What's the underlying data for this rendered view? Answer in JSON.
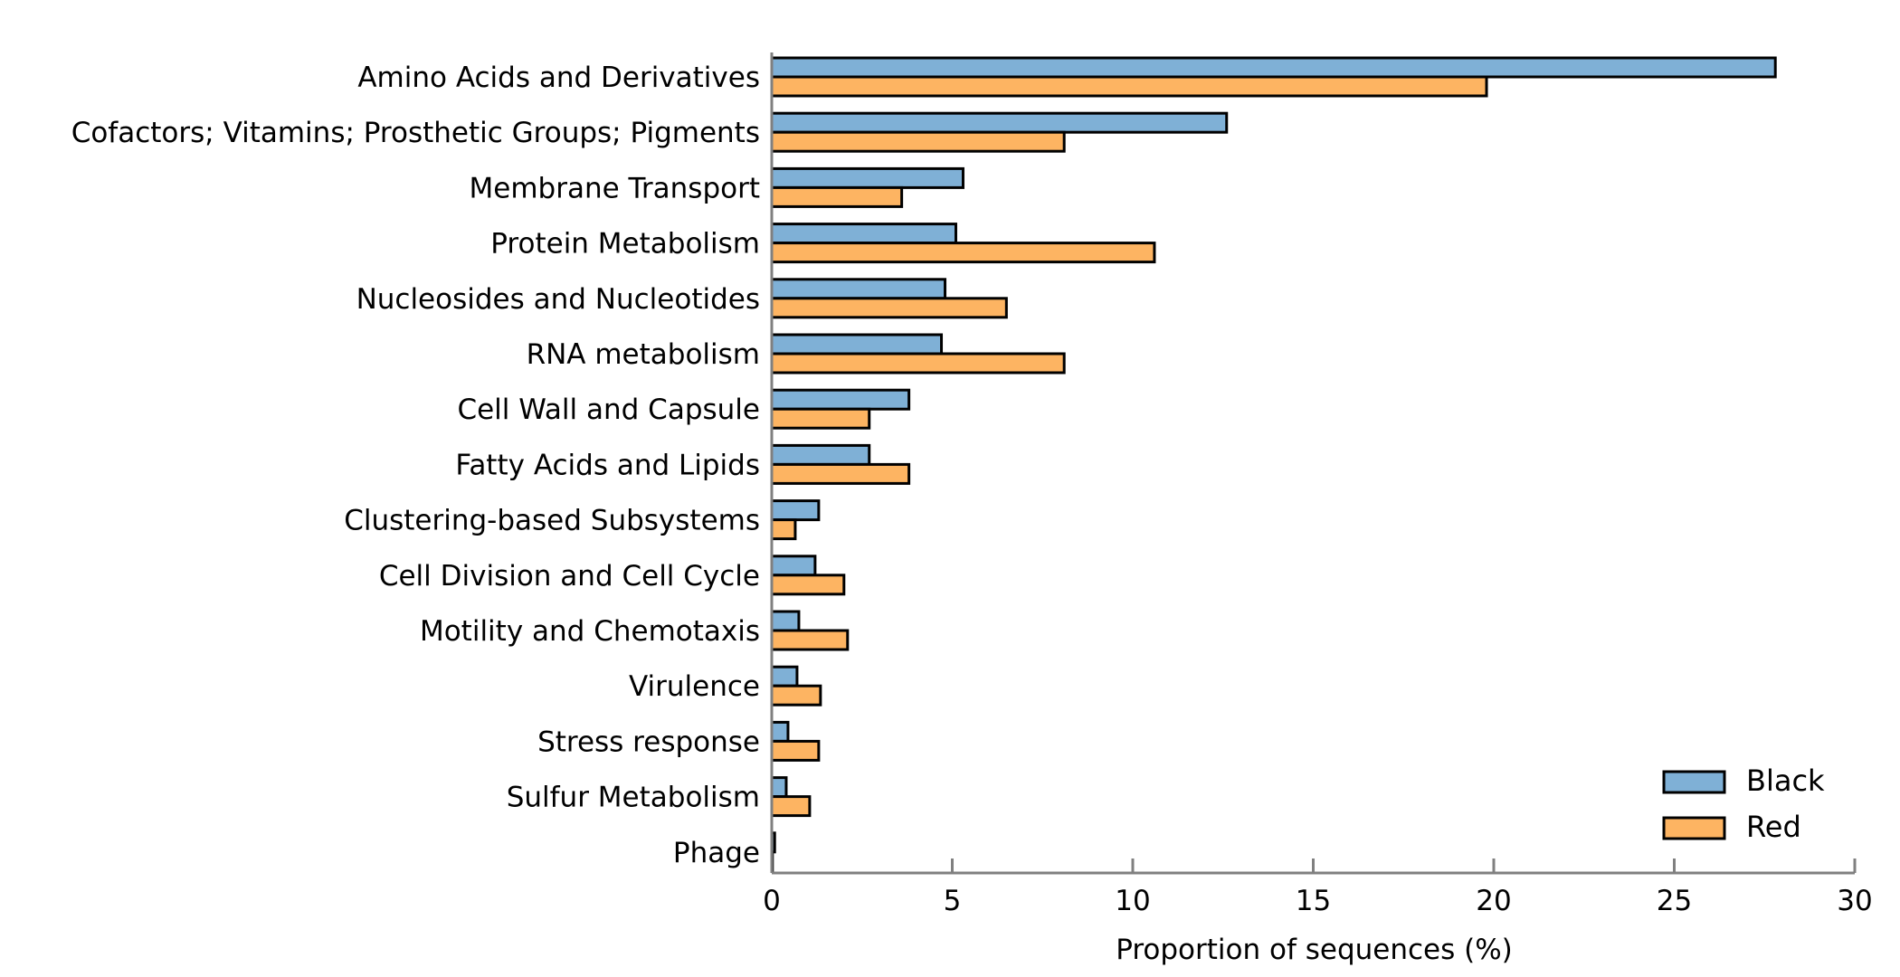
{
  "chart_data": {
    "type": "bar",
    "orientation": "horizontal",
    "categories": [
      "Amino Acids and Derivatives",
      "Cofactors; Vitamins; Prosthetic Groups; Pigments",
      "Membrane Transport",
      "Protein Metabolism",
      "Nucleosides and Nucleotides",
      "RNA metabolism",
      "Cell Wall and Capsule",
      "Fatty Acids and Lipids",
      "Clustering-based Subsystems",
      "Cell Division and Cell Cycle",
      "Motility and Chemotaxis",
      "Virulence",
      "Stress response",
      "Sulfur Metabolism",
      "Phage"
    ],
    "series": [
      {
        "name": "Black",
        "color": "#7fb0d6",
        "values": [
          27.8,
          12.6,
          5.3,
          5.1,
          4.8,
          4.7,
          3.8,
          2.7,
          1.3,
          1.2,
          0.75,
          0.7,
          0.45,
          0.4,
          0.08
        ]
      },
      {
        "name": "Red",
        "color": "#fdb462",
        "values": [
          19.8,
          8.1,
          3.6,
          10.6,
          6.5,
          8.1,
          2.7,
          3.8,
          0.65,
          2.0,
          2.1,
          1.35,
          1.3,
          1.05,
          0.02
        ]
      }
    ],
    "xlabel": "Proportion of sequences (%)",
    "ylabel": "",
    "xlim": [
      0,
      30
    ],
    "xticks": [
      0,
      5,
      10,
      15,
      20,
      25,
      30
    ],
    "grid": false,
    "legend_position": "bottom-right"
  }
}
